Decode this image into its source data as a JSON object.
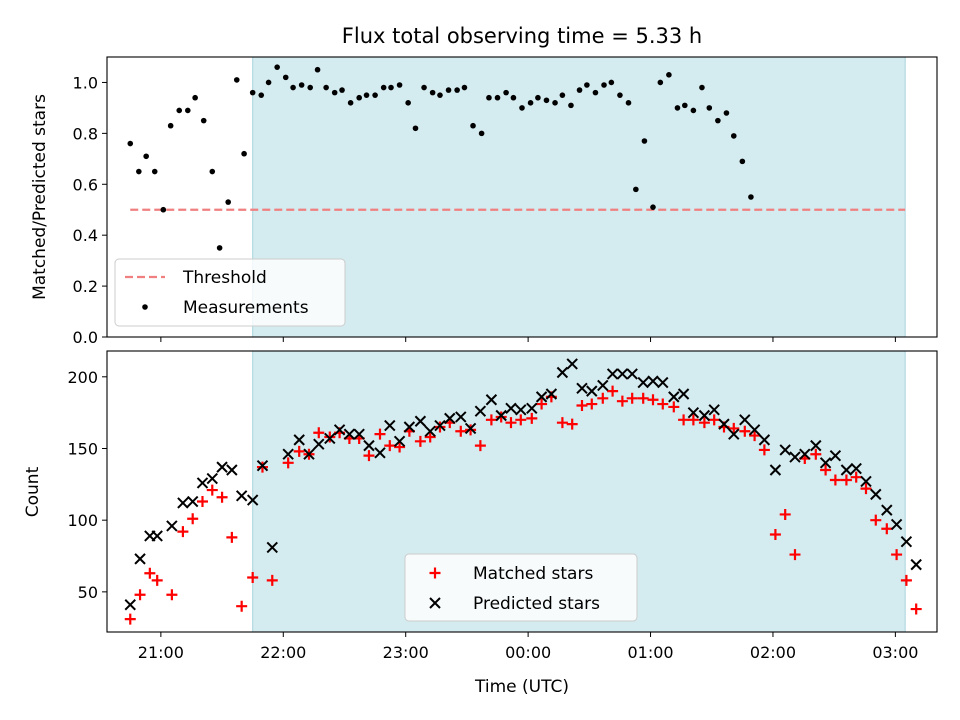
{
  "chart_data": [
    {
      "type": "scatter",
      "title": "Flux total observing time = 5.33 h",
      "xlabel": "",
      "ylabel": "Matched/Predicted stars",
      "x_unit": "UTC time (hours of day, wrapping past midnight)",
      "xlim_hours": [
        20.56,
        27.34
      ],
      "ylim": [
        0,
        1.1
      ],
      "yticks": [
        0.0,
        0.2,
        0.4,
        0.6,
        0.8,
        1.0
      ],
      "ytick_labels": [
        "0.0",
        "0.2",
        "0.4",
        "0.6",
        "0.8",
        "1.0"
      ],
      "shaded_span_hours": [
        21.75,
        27.08
      ],
      "shade_color": "#d4ebf0",
      "legend_position": "lower-left",
      "threshold": {
        "name": "Threshold",
        "value": 0.5,
        "x_start_hours": 20.75,
        "x_end_hours": 27.08,
        "color": "#f08080"
      },
      "series": [
        {
          "name": "Measurements",
          "marker": "dot",
          "color": "#000000",
          "points": [
            [
              20.75,
              0.76
            ],
            [
              20.82,
              0.65
            ],
            [
              20.88,
              0.71
            ],
            [
              20.95,
              0.65
            ],
            [
              21.02,
              0.5
            ],
            [
              21.08,
              0.83
            ],
            [
              21.15,
              0.89
            ],
            [
              21.22,
              0.89
            ],
            [
              21.28,
              0.94
            ],
            [
              21.35,
              0.85
            ],
            [
              21.42,
              0.65
            ],
            [
              21.48,
              0.35
            ],
            [
              21.55,
              0.53
            ],
            [
              21.62,
              1.01
            ],
            [
              21.68,
              0.72
            ],
            [
              21.75,
              0.96
            ],
            [
              21.82,
              0.95
            ],
            [
              21.88,
              1.0
            ],
            [
              21.95,
              1.06
            ],
            [
              22.02,
              1.02
            ],
            [
              22.08,
              0.98
            ],
            [
              22.15,
              0.99
            ],
            [
              22.22,
              0.98
            ],
            [
              22.28,
              1.05
            ],
            [
              22.35,
              0.98
            ],
            [
              22.42,
              0.96
            ],
            [
              22.48,
              0.97
            ],
            [
              22.55,
              0.92
            ],
            [
              22.62,
              0.94
            ],
            [
              22.68,
              0.95
            ],
            [
              22.75,
              0.95
            ],
            [
              22.82,
              0.98
            ],
            [
              22.88,
              0.98
            ],
            [
              22.95,
              0.99
            ],
            [
              23.02,
              0.92
            ],
            [
              23.08,
              0.82
            ],
            [
              23.15,
              0.98
            ],
            [
              23.22,
              0.96
            ],
            [
              23.28,
              0.95
            ],
            [
              23.35,
              0.97
            ],
            [
              23.42,
              0.97
            ],
            [
              23.48,
              0.98
            ],
            [
              23.55,
              0.83
            ],
            [
              23.62,
              0.8
            ],
            [
              23.68,
              0.94
            ],
            [
              23.75,
              0.94
            ],
            [
              23.82,
              0.96
            ],
            [
              23.88,
              0.94
            ],
            [
              23.95,
              0.9
            ],
            [
              24.02,
              0.92
            ],
            [
              24.08,
              0.94
            ],
            [
              24.15,
              0.93
            ],
            [
              24.22,
              0.92
            ],
            [
              24.28,
              0.95
            ],
            [
              24.35,
              0.91
            ],
            [
              24.42,
              0.97
            ],
            [
              24.48,
              0.99
            ],
            [
              24.55,
              0.96
            ],
            [
              24.62,
              0.99
            ],
            [
              24.68,
              1.0
            ],
            [
              24.75,
              0.95
            ],
            [
              24.82,
              0.92
            ],
            [
              24.88,
              0.58
            ],
            [
              24.95,
              0.77
            ],
            [
              25.02,
              0.51
            ],
            [
              25.08,
              1.0
            ],
            [
              25.15,
              1.03
            ],
            [
              25.22,
              0.9
            ],
            [
              25.28,
              0.91
            ],
            [
              25.35,
              0.89
            ],
            [
              25.42,
              0.98
            ],
            [
              25.48,
              0.9
            ],
            [
              25.55,
              0.85
            ],
            [
              25.62,
              0.88
            ],
            [
              25.68,
              0.79
            ],
            [
              25.75,
              0.69
            ],
            [
              25.82,
              0.55
            ]
          ]
        }
      ]
    },
    {
      "type": "scatter",
      "title": "",
      "xlabel": "Time (UTC)",
      "ylabel": "Count",
      "xlim_hours": [
        20.56,
        27.34
      ],
      "ylim": [
        22,
        218
      ],
      "yticks": [
        50,
        100,
        150,
        200
      ],
      "ytick_labels": [
        "50",
        "100",
        "150",
        "200"
      ],
      "xticks_hours": [
        21,
        22,
        23,
        24,
        25,
        26,
        27
      ],
      "xtick_labels": [
        "21:00",
        "22:00",
        "23:00",
        "00:00",
        "01:00",
        "02:00",
        "03:00"
      ],
      "shaded_span_hours": [
        21.75,
        27.08
      ],
      "legend_position": "lower-center",
      "series": [
        {
          "name": "Matched stars",
          "marker": "plus",
          "color": "#ff0000",
          "points": [
            [
              20.75,
              31
            ],
            [
              20.83,
              48
            ],
            [
              20.91,
              63
            ],
            [
              20.97,
              58
            ],
            [
              21.09,
              48
            ],
            [
              21.18,
              92
            ],
            [
              21.26,
              101
            ],
            [
              21.34,
              113
            ],
            [
              21.42,
              121
            ],
            [
              21.5,
              116
            ],
            [
              21.58,
              88
            ],
            [
              21.66,
              40
            ],
            [
              21.75,
              60
            ],
            [
              21.83,
              137
            ],
            [
              21.91,
              58
            ],
            [
              22.04,
              140
            ],
            [
              22.13,
              148
            ],
            [
              22.21,
              146
            ],
            [
              22.29,
              161
            ],
            [
              22.38,
              158
            ],
            [
              22.46,
              161
            ],
            [
              22.54,
              157
            ],
            [
              22.62,
              157
            ],
            [
              22.7,
              145
            ],
            [
              22.79,
              160
            ],
            [
              22.87,
              152
            ],
            [
              22.95,
              151
            ],
            [
              23.03,
              162
            ],
            [
              23.12,
              155
            ],
            [
              23.2,
              158
            ],
            [
              23.28,
              165
            ],
            [
              23.36,
              168
            ],
            [
              23.45,
              162
            ],
            [
              23.53,
              163
            ],
            [
              23.61,
              152
            ],
            [
              23.7,
              170
            ],
            [
              23.78,
              172
            ],
            [
              23.86,
              168
            ],
            [
              23.94,
              170
            ],
            [
              24.03,
              171
            ],
            [
              24.11,
              181
            ],
            [
              24.19,
              186
            ],
            [
              24.28,
              168
            ],
            [
              24.36,
              167
            ],
            [
              24.44,
              180
            ],
            [
              24.52,
              181
            ],
            [
              24.61,
              185
            ],
            [
              24.69,
              190
            ],
            [
              24.77,
              183
            ],
            [
              24.85,
              185
            ],
            [
              24.94,
              185
            ],
            [
              25.02,
              184
            ],
            [
              25.1,
              181
            ],
            [
              25.19,
              179
            ],
            [
              25.27,
              170
            ],
            [
              25.35,
              170
            ],
            [
              25.44,
              168
            ],
            [
              25.52,
              170
            ],
            [
              25.6,
              165
            ],
            [
              25.68,
              164
            ],
            [
              25.77,
              162
            ],
            [
              25.85,
              159
            ],
            [
              25.93,
              149
            ],
            [
              26.02,
              90
            ],
            [
              26.1,
              104
            ],
            [
              26.18,
              76
            ],
            [
              26.26,
              143
            ],
            [
              26.35,
              146
            ],
            [
              26.43,
              135
            ],
            [
              26.51,
              128
            ],
            [
              26.6,
              128
            ],
            [
              26.68,
              130
            ],
            [
              26.76,
              122
            ],
            [
              26.84,
              100
            ],
            [
              26.93,
              94
            ],
            [
              27.01,
              76
            ],
            [
              27.09,
              58
            ],
            [
              27.17,
              38
            ]
          ]
        },
        {
          "name": "Predicted stars",
          "marker": "x",
          "color": "#000000",
          "points": [
            [
              20.75,
              41
            ],
            [
              20.83,
              73
            ],
            [
              20.91,
              89
            ],
            [
              20.97,
              89
            ],
            [
              21.09,
              96
            ],
            [
              21.18,
              112
            ],
            [
              21.26,
              113
            ],
            [
              21.34,
              126
            ],
            [
              21.42,
              129
            ],
            [
              21.5,
              137
            ],
            [
              21.58,
              135
            ],
            [
              21.66,
              117
            ],
            [
              21.75,
              114
            ],
            [
              21.83,
              138
            ],
            [
              21.91,
              81
            ],
            [
              22.04,
              146
            ],
            [
              22.13,
              156
            ],
            [
              22.21,
              146
            ],
            [
              22.29,
              153
            ],
            [
              22.38,
              157
            ],
            [
              22.46,
              163
            ],
            [
              22.54,
              160
            ],
            [
              22.62,
              160
            ],
            [
              22.7,
              152
            ],
            [
              22.79,
              147
            ],
            [
              22.87,
              166
            ],
            [
              22.95,
              155
            ],
            [
              23.03,
              165
            ],
            [
              23.12,
              169
            ],
            [
              23.2,
              162
            ],
            [
              23.28,
              166
            ],
            [
              23.36,
              171
            ],
            [
              23.45,
              172
            ],
            [
              23.53,
              164
            ],
            [
              23.61,
              176
            ],
            [
              23.7,
              184
            ],
            [
              23.78,
              173
            ],
            [
              23.86,
              178
            ],
            [
              23.94,
              177
            ],
            [
              24.03,
              178
            ],
            [
              24.11,
              186
            ],
            [
              24.19,
              188
            ],
            [
              24.28,
              203
            ],
            [
              24.36,
              209
            ],
            [
              24.44,
              192
            ],
            [
              24.52,
              190
            ],
            [
              24.61,
              194
            ],
            [
              24.69,
              202
            ],
            [
              24.77,
              202
            ],
            [
              24.85,
              202
            ],
            [
              24.94,
              196
            ],
            [
              25.02,
              197
            ],
            [
              25.1,
              196
            ],
            [
              25.19,
              186
            ],
            [
              25.27,
              188
            ],
            [
              25.35,
              175
            ],
            [
              25.44,
              173
            ],
            [
              25.52,
              177
            ],
            [
              25.6,
              167
            ],
            [
              25.68,
              160
            ],
            [
              25.77,
              170
            ],
            [
              25.85,
              163
            ],
            [
              25.93,
              156
            ],
            [
              26.02,
              135
            ],
            [
              26.1,
              149
            ],
            [
              26.18,
              144
            ],
            [
              26.26,
              146
            ],
            [
              26.35,
              152
            ],
            [
              26.43,
              140
            ],
            [
              26.51,
              145
            ],
            [
              26.6,
              135
            ],
            [
              26.68,
              136
            ],
            [
              26.76,
              127
            ],
            [
              26.84,
              118
            ],
            [
              26.93,
              107
            ],
            [
              27.01,
              97
            ],
            [
              27.09,
              85
            ],
            [
              27.17,
              69
            ]
          ]
        }
      ]
    }
  ]
}
